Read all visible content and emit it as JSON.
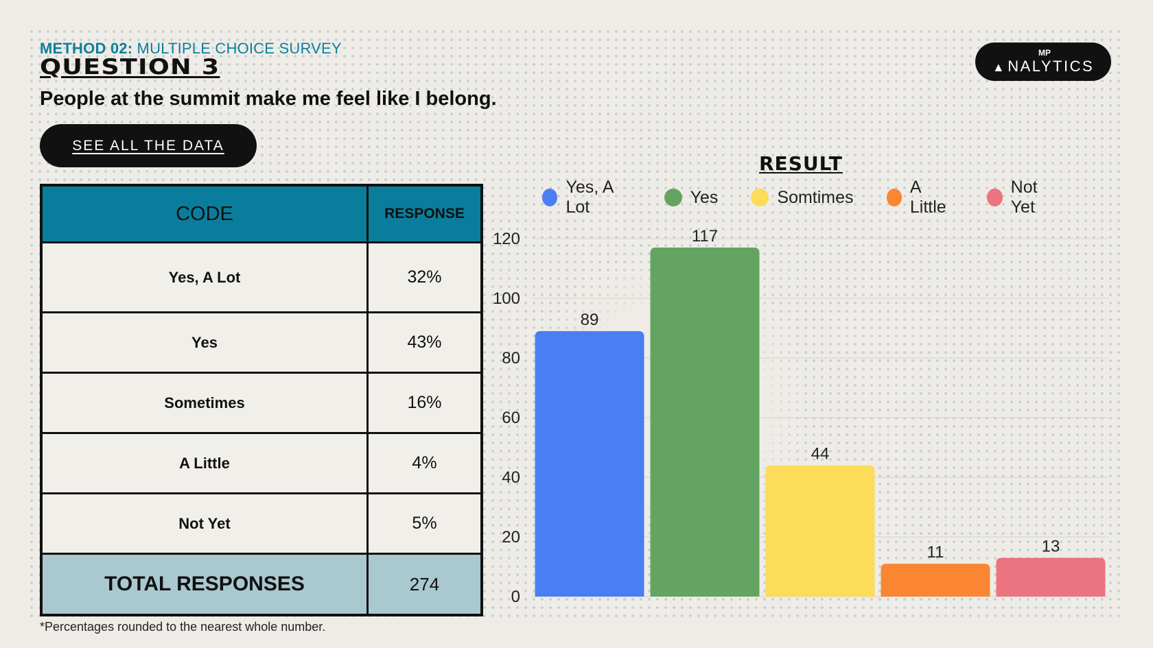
{
  "header": {
    "method_bold": "METHOD 02:",
    "method_rest": " MULTIPLE CHOICE SURVEY",
    "question": "QUESTION 3",
    "statement": "People at the summit make me feel like I belong.",
    "see_all_label": "SEE ALL THE DATA",
    "logo_text": "NALYTICS",
    "logo_mark": "MP"
  },
  "table": {
    "col_code": "CODE",
    "col_response": "RESPONSE",
    "rows": [
      {
        "code": "Yes, A Lot",
        "response": "32%"
      },
      {
        "code": "Yes",
        "response": "43%"
      },
      {
        "code": "Sometimes",
        "response": "16%"
      },
      {
        "code": "A Little",
        "response": "4%"
      },
      {
        "code": "Not Yet",
        "response": "5%"
      }
    ],
    "total_label": "TOTAL RESPONSES",
    "total_value": "274"
  },
  "footnote": "*Percentages rounded to the nearest whole number.",
  "chart_data": {
    "type": "bar",
    "title": "RESULT",
    "categories": [
      "Yes, A Lot",
      "Yes",
      "Somtimes",
      "A Little",
      "Not Yet"
    ],
    "values": [
      89,
      117,
      44,
      11,
      13
    ],
    "colors": [
      "#4a7ff3",
      "#64a462",
      "#fcdc58",
      "#fa8532",
      "#ec7380"
    ],
    "legend": [
      "Yes, A Lot",
      "Yes",
      "Somtimes",
      "A Little",
      "Not Yet"
    ],
    "yticks": [
      0,
      20,
      40,
      60,
      80,
      100,
      120
    ],
    "ylim": [
      0,
      120
    ],
    "grid": true,
    "xlabel": "",
    "ylabel": ""
  }
}
